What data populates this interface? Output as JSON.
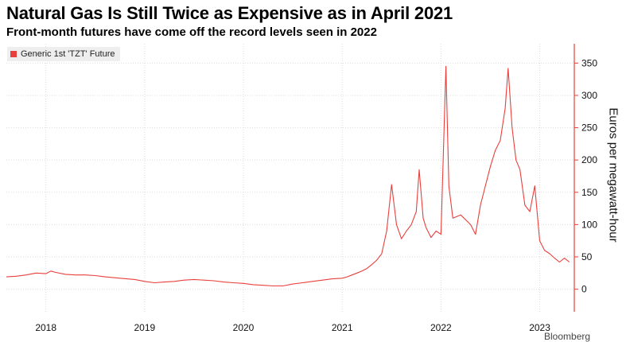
{
  "title": "Natural Gas Is Still Twice as Expensive as in April 2021",
  "subtitle": "Front-month futures have come off the record levels seen in 2022",
  "source_partial": "Bloomberg",
  "colors": {
    "series": "#e8403c",
    "axis": "#e8403c",
    "grid": "#dddddd",
    "legend_bg": "#eeeeee"
  },
  "chart_data": {
    "type": "line",
    "ylabel": "Euros per megawatt-hour",
    "xlabel": "",
    "yaxis_position": "right",
    "ylim": [
      -35,
      380
    ],
    "yticks": [
      0,
      50,
      100,
      150,
      200,
      250,
      300,
      350
    ],
    "xlim": [
      2017.6,
      2023.35
    ],
    "xticks": [
      {
        "label": "2018",
        "x": 2018.0
      },
      {
        "label": "2019",
        "x": 2019.0
      },
      {
        "label": "2020",
        "x": 2020.0
      },
      {
        "label": "2021",
        "x": 2021.0
      },
      {
        "label": "2022",
        "x": 2022.0
      },
      {
        "label": "2023",
        "x": 2023.0
      }
    ],
    "grid": true,
    "legend": "top-left",
    "series": [
      {
        "name": "Generic 1st 'TZT' Future",
        "points": [
          [
            2017.6,
            19
          ],
          [
            2017.7,
            20
          ],
          [
            2017.8,
            22
          ],
          [
            2017.9,
            25
          ],
          [
            2018.0,
            24
          ],
          [
            2018.05,
            28
          ],
          [
            2018.1,
            26
          ],
          [
            2018.2,
            23
          ],
          [
            2018.3,
            22
          ],
          [
            2018.4,
            22
          ],
          [
            2018.5,
            21
          ],
          [
            2018.6,
            19
          ],
          [
            2018.75,
            17
          ],
          [
            2018.9,
            15
          ],
          [
            2019.0,
            12
          ],
          [
            2019.1,
            10
          ],
          [
            2019.2,
            11
          ],
          [
            2019.3,
            12
          ],
          [
            2019.4,
            14
          ],
          [
            2019.5,
            15
          ],
          [
            2019.6,
            14
          ],
          [
            2019.7,
            13
          ],
          [
            2019.8,
            11
          ],
          [
            2019.9,
            10
          ],
          [
            2020.0,
            9
          ],
          [
            2020.1,
            7
          ],
          [
            2020.2,
            6
          ],
          [
            2020.3,
            5
          ],
          [
            2020.4,
            5
          ],
          [
            2020.5,
            8
          ],
          [
            2020.6,
            10
          ],
          [
            2020.7,
            12
          ],
          [
            2020.8,
            14
          ],
          [
            2020.9,
            16
          ],
          [
            2021.0,
            17
          ],
          [
            2021.05,
            19
          ],
          [
            2021.1,
            22
          ],
          [
            2021.15,
            25
          ],
          [
            2021.2,
            28
          ],
          [
            2021.25,
            32
          ],
          [
            2021.3,
            38
          ],
          [
            2021.35,
            45
          ],
          [
            2021.4,
            55
          ],
          [
            2021.45,
            90
          ],
          [
            2021.5,
            162
          ],
          [
            2021.55,
            100
          ],
          [
            2021.6,
            78
          ],
          [
            2021.65,
            90
          ],
          [
            2021.7,
            100
          ],
          [
            2021.75,
            120
          ],
          [
            2021.78,
            185
          ],
          [
            2021.82,
            110
          ],
          [
            2021.85,
            95
          ],
          [
            2021.9,
            80
          ],
          [
            2021.95,
            90
          ],
          [
            2022.0,
            85
          ],
          [
            2022.05,
            345
          ],
          [
            2022.08,
            160
          ],
          [
            2022.12,
            110
          ],
          [
            2022.2,
            115
          ],
          [
            2022.3,
            100
          ],
          [
            2022.35,
            85
          ],
          [
            2022.4,
            130
          ],
          [
            2022.45,
            160
          ],
          [
            2022.5,
            190
          ],
          [
            2022.55,
            215
          ],
          [
            2022.6,
            230
          ],
          [
            2022.65,
            280
          ],
          [
            2022.68,
            342
          ],
          [
            2022.72,
            250
          ],
          [
            2022.76,
            200
          ],
          [
            2022.8,
            185
          ],
          [
            2022.85,
            130
          ],
          [
            2022.9,
            120
          ],
          [
            2022.95,
            160
          ],
          [
            2023.0,
            75
          ],
          [
            2023.05,
            60
          ],
          [
            2023.1,
            55
          ],
          [
            2023.15,
            48
          ],
          [
            2023.2,
            42
          ],
          [
            2023.25,
            48
          ],
          [
            2023.3,
            42
          ]
        ]
      }
    ]
  }
}
